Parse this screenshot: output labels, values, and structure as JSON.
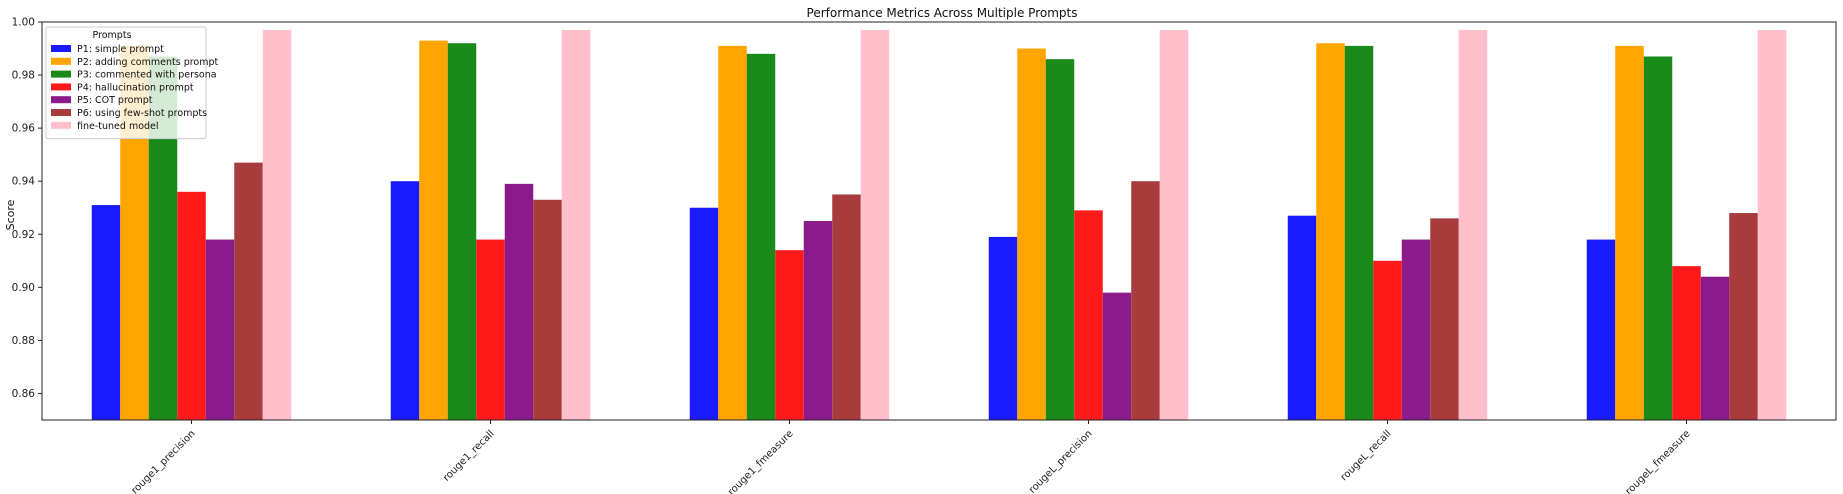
{
  "chart_data": {
    "type": "bar",
    "title": "Performance Metrics Across Multiple Prompts",
    "xlabel": "",
    "ylabel": "Score",
    "ylim": [
      0.85,
      1.0
    ],
    "yticks": [
      "0.86",
      "0.88",
      "0.90",
      "0.92",
      "0.94",
      "0.96",
      "0.98",
      "1.00"
    ],
    "grid": false,
    "legend": {
      "title": "Prompts",
      "placement": "top-left"
    },
    "categories": [
      "rouge1_precision",
      "rouge1_recall",
      "rouge1_fmeasure",
      "rougeL_precision",
      "rougeL_recall",
      "rougeL_fmeasure"
    ],
    "series": [
      {
        "name": "P1: simple prompt",
        "color": "#1a1aff",
        "values": [
          0.931,
          0.94,
          0.93,
          0.919,
          0.927,
          0.918
        ]
      },
      {
        "name": "P2: adding comments prompt",
        "color": "#ffa500",
        "values": [
          0.991,
          0.993,
          0.991,
          0.99,
          0.992,
          0.991
        ]
      },
      {
        "name": "P3: commented with persona",
        "color": "#1a8a1a",
        "values": [
          0.987,
          0.992,
          0.988,
          0.986,
          0.991,
          0.987
        ]
      },
      {
        "name": "P4: hallucination prompt",
        "color": "#ff1a1a",
        "values": [
          0.936,
          0.918,
          0.914,
          0.929,
          0.91,
          0.908
        ]
      },
      {
        "name": "P5: COT prompt",
        "color": "#8b1a8b",
        "values": [
          0.918,
          0.939,
          0.925,
          0.898,
          0.918,
          0.904
        ]
      },
      {
        "name": "P6: using few-shot prompts",
        "color": "#a83c3c",
        "values": [
          0.947,
          0.933,
          0.935,
          0.94,
          0.926,
          0.928
        ]
      },
      {
        "name": "fine-tuned model",
        "color": "#ffc0cb",
        "values": [
          0.997,
          0.997,
          0.997,
          0.997,
          0.997,
          0.997
        ]
      }
    ]
  }
}
